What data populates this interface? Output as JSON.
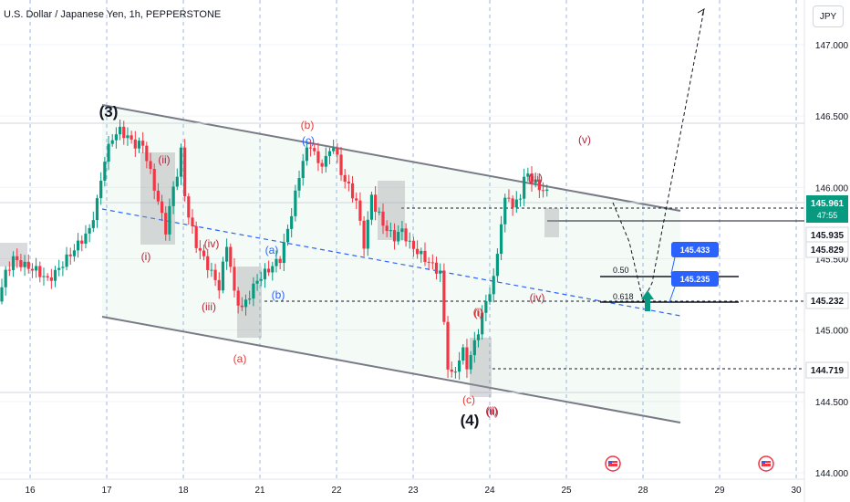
{
  "header": {
    "title": "U.S. Dollar / Japanese Yen, 1h, PEPPERSTONE",
    "currency": "JPY"
  },
  "chart_data": {
    "type": "candlestick",
    "symbol": "U.S. Dollar / Japanese Yen",
    "interval": "1h",
    "source": "PEPPERSTONE",
    "y_axis": {
      "min": 144.0,
      "max": 147.3,
      "ticks": [
        "144.000",
        "144.500",
        "145.000",
        "145.500",
        "146.000",
        "146.500",
        "147.000"
      ]
    },
    "x_axis": {
      "ticks": [
        "16",
        "17",
        "18",
        "21",
        "22",
        "23",
        "24",
        "25",
        "28",
        "29",
        "30"
      ]
    },
    "price_labels": [
      {
        "text": "145.961",
        "sub": "47:55",
        "kind": "last",
        "color": "#089981"
      },
      {
        "text": "145.935",
        "kind": "level",
        "color": "#131722"
      },
      {
        "text": "145.829",
        "kind": "level",
        "color": "#131722"
      },
      {
        "text": "145.232",
        "kind": "level",
        "color": "#131722"
      },
      {
        "text": "144.719",
        "kind": "level",
        "color": "#131722"
      }
    ],
    "callouts": [
      {
        "text": "145.433",
        "color": "#2962ff"
      },
      {
        "text": "145.235",
        "color": "#2962ff"
      }
    ],
    "fib_labels": [
      "0.50",
      "0.618"
    ],
    "wave_labels": [
      {
        "text": "(3)",
        "color": "#131722",
        "size": "large"
      },
      {
        "text": "(4)",
        "color": "#131722",
        "size": "large"
      },
      {
        "text": "(i)",
        "color": "#b2263b"
      },
      {
        "text": "(ii)",
        "color": "#b2263b"
      },
      {
        "text": "(iii)",
        "color": "#b2263b"
      },
      {
        "text": "(iv)",
        "color": "#b2263b"
      },
      {
        "text": "(a)",
        "color": "#e53935"
      },
      {
        "text": "(b)",
        "color": "#e53935"
      },
      {
        "text": "(c)",
        "color": "#2962ff"
      },
      {
        "text": "(a)",
        "color": "#2962ff"
      },
      {
        "text": "(b)",
        "color": "#2962ff"
      },
      {
        "text": "(i)",
        "color": "#b2263b"
      },
      {
        "text": "(ii)",
        "color": "#b2263b"
      },
      {
        "text": "(iii)",
        "color": "#b2263b"
      },
      {
        "text": "(iv)",
        "color": "#b2263b"
      },
      {
        "text": "(v)",
        "color": "#b2263b"
      },
      {
        "text": "(i)",
        "color": "#e53935"
      },
      {
        "text": "(c)",
        "color": "#e53935"
      },
      {
        "text": "(ii)",
        "color": "#b2263b"
      }
    ],
    "series": [
      {
        "name": "close",
        "points": [
          [
            0,
            145.2
          ],
          [
            2,
            145.4
          ],
          [
            4,
            145.5
          ],
          [
            7,
            145.45
          ],
          [
            10,
            145.42
          ],
          [
            13,
            145.35
          ],
          [
            15,
            145.4
          ],
          [
            18,
            145.5
          ],
          [
            21,
            145.6
          ],
          [
            24,
            145.7
          ],
          [
            26,
            145.9
          ],
          [
            28,
            146.2
          ],
          [
            30,
            146.35
          ],
          [
            32,
            146.4
          ],
          [
            34,
            146.35
          ],
          [
            36,
            146.3
          ],
          [
            38,
            146.3
          ],
          [
            40,
            146.1
          ],
          [
            42,
            145.9
          ],
          [
            44,
            145.7
          ],
          [
            45,
            145.85
          ],
          [
            46,
            146.0
          ],
          [
            47,
            146.1
          ],
          [
            48,
            146.25
          ],
          [
            49,
            145.95
          ],
          [
            50,
            145.8
          ],
          [
            52,
            145.6
          ],
          [
            54,
            145.5
          ],
          [
            56,
            145.4
          ],
          [
            58,
            145.3
          ],
          [
            59,
            145.45
          ],
          [
            60,
            145.6
          ],
          [
            61,
            145.45
          ],
          [
            62,
            145.25
          ],
          [
            64,
            145.15
          ],
          [
            66,
            145.25
          ],
          [
            68,
            145.35
          ],
          [
            70,
            145.4
          ],
          [
            72,
            145.45
          ],
          [
            74,
            145.5
          ],
          [
            76,
            145.7
          ],
          [
            78,
            145.95
          ],
          [
            80,
            146.2
          ],
          [
            82,
            146.3
          ],
          [
            83,
            146.25
          ],
          [
            84,
            146.15
          ],
          [
            86,
            146.2
          ],
          [
            88,
            146.3
          ],
          [
            90,
            146.1
          ],
          [
            92,
            146.0
          ],
          [
            94,
            145.9
          ],
          [
            95,
            145.75
          ],
          [
            96,
            145.6
          ],
          [
            97,
            145.75
          ],
          [
            98,
            145.95
          ],
          [
            99,
            145.85
          ],
          [
            100,
            145.8
          ],
          [
            102,
            145.7
          ],
          [
            104,
            145.65
          ],
          [
            106,
            145.7
          ],
          [
            108,
            145.6
          ],
          [
            110,
            145.55
          ],
          [
            112,
            145.5
          ],
          [
            114,
            145.45
          ],
          [
            116,
            145.4
          ],
          [
            117,
            145.05
          ],
          [
            118,
            144.75
          ],
          [
            119,
            144.68
          ],
          [
            120,
            144.72
          ],
          [
            121,
            144.8
          ],
          [
            122,
            144.85
          ],
          [
            123,
            144.75
          ],
          [
            124,
            144.82
          ],
          [
            126,
            145.0
          ],
          [
            128,
            145.2
          ],
          [
            130,
            145.35
          ],
          [
            131,
            145.55
          ],
          [
            132,
            145.75
          ],
          [
            133,
            145.9
          ],
          [
            134,
            145.95
          ],
          [
            135,
            145.85
          ],
          [
            136,
            145.9
          ],
          [
            137,
            145.95
          ],
          [
            138,
            146.05
          ],
          [
            139,
            146.1
          ],
          [
            140,
            146.05
          ],
          [
            142,
            146.0
          ],
          [
            144,
            145.96
          ]
        ]
      }
    ]
  }
}
